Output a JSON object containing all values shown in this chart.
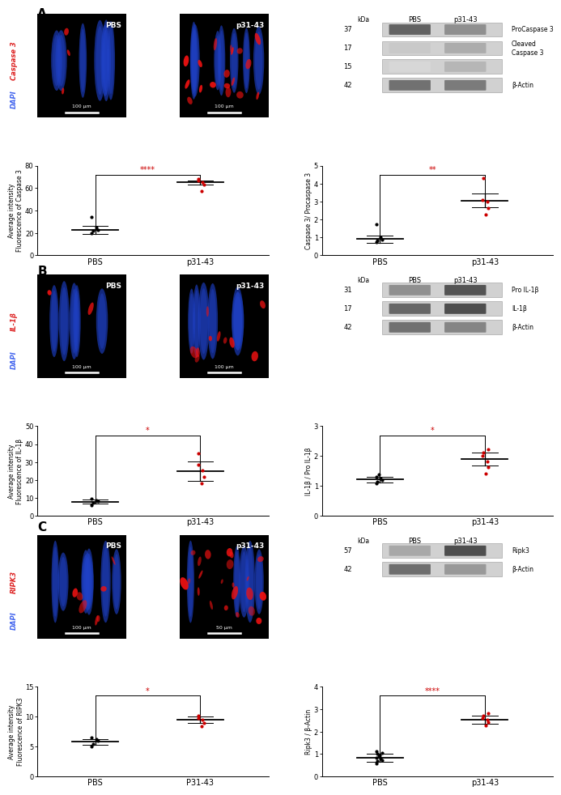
{
  "panel_A_scatter1": {
    "pbs_y": [
      19.5,
      22.0,
      23.0,
      24.5,
      34.0
    ],
    "p31_y": [
      57.5,
      63.0,
      65.0,
      66.5,
      68.0
    ],
    "pbs_mean": 22.5,
    "pbs_err": 3.5,
    "p31_mean": 65.0,
    "p31_err": 1.8,
    "ylabel": "Average intensity\nFluorescence of Caspase 3",
    "ylim": [
      0,
      80
    ],
    "yticks": [
      0,
      20,
      40,
      60,
      80
    ],
    "sig": "****"
  },
  "panel_A_scatter2": {
    "pbs_y": [
      0.72,
      0.82,
      0.88,
      1.0,
      1.72
    ],
    "p31_y": [
      2.28,
      2.62,
      3.0,
      3.1,
      4.32
    ],
    "pbs_mean": 0.9,
    "pbs_err": 0.22,
    "p31_mean": 3.05,
    "p31_err": 0.38,
    "ylabel": "Caspase 3/ Procaspase 3",
    "ylim": [
      0,
      5
    ],
    "yticks": [
      0,
      1,
      2,
      3,
      4,
      5
    ],
    "sig": "**"
  },
  "panel_B_scatter1": {
    "pbs_y": [
      6.2,
      7.5,
      8.2,
      8.8,
      9.5
    ],
    "p31_y": [
      18.0,
      22.0,
      25.5,
      28.5,
      35.0
    ],
    "pbs_mean": 8.0,
    "pbs_err": 1.3,
    "p31_mean": 25.0,
    "p31_err": 5.5,
    "ylabel": "Average intensity\nFluorescence of IL-1β",
    "ylim": [
      0,
      50
    ],
    "yticks": [
      0,
      10,
      20,
      30,
      40,
      50
    ],
    "sig": "*"
  },
  "panel_B_scatter2": {
    "pbs_y": [
      1.08,
      1.15,
      1.2,
      1.25,
      1.3,
      1.38
    ],
    "p31_y": [
      1.42,
      1.62,
      1.82,
      2.02,
      2.12,
      2.22
    ],
    "pbs_mean": 1.22,
    "pbs_err": 0.1,
    "p31_mean": 1.9,
    "p31_err": 0.22,
    "ylabel": "IL-1β / Pro IL-1β",
    "ylim": [
      0,
      3
    ],
    "yticks": [
      0,
      1,
      2,
      3
    ],
    "sig": "*"
  },
  "panel_C_scatter1": {
    "pbs_y": [
      5.0,
      5.5,
      6.0,
      6.2,
      6.5
    ],
    "p31_y": [
      8.4,
      9.0,
      9.5,
      9.8,
      10.2
    ],
    "pbs_mean": 5.8,
    "pbs_err": 0.45,
    "p31_mean": 9.5,
    "p31_err": 0.55,
    "ylabel": "Average intensity\nFluorescence of RIPK3",
    "ylim": [
      0,
      15
    ],
    "yticks": [
      0,
      5,
      10,
      15
    ],
    "sig": "*",
    "xlabel_pbs": "PBS",
    "xlabel_p31": "P31-43"
  },
  "panel_C_scatter2": {
    "pbs_y": [
      0.6,
      0.68,
      0.74,
      0.8,
      0.85,
      0.9,
      0.95,
      1.0,
      1.05,
      1.12
    ],
    "p31_y": [
      2.28,
      2.42,
      2.52,
      2.62,
      2.72,
      2.82
    ],
    "pbs_mean": 0.85,
    "pbs_err": 0.18,
    "p31_mean": 2.55,
    "p31_err": 0.18,
    "ylabel": "Ripk3 / β-Actin",
    "ylim": [
      0,
      4
    ],
    "yticks": [
      0,
      1,
      2,
      3,
      4
    ],
    "sig": "****"
  },
  "dot_color_pbs": "#000000",
  "dot_color_p31": "#cc0000",
  "bg_color": "#ffffff"
}
